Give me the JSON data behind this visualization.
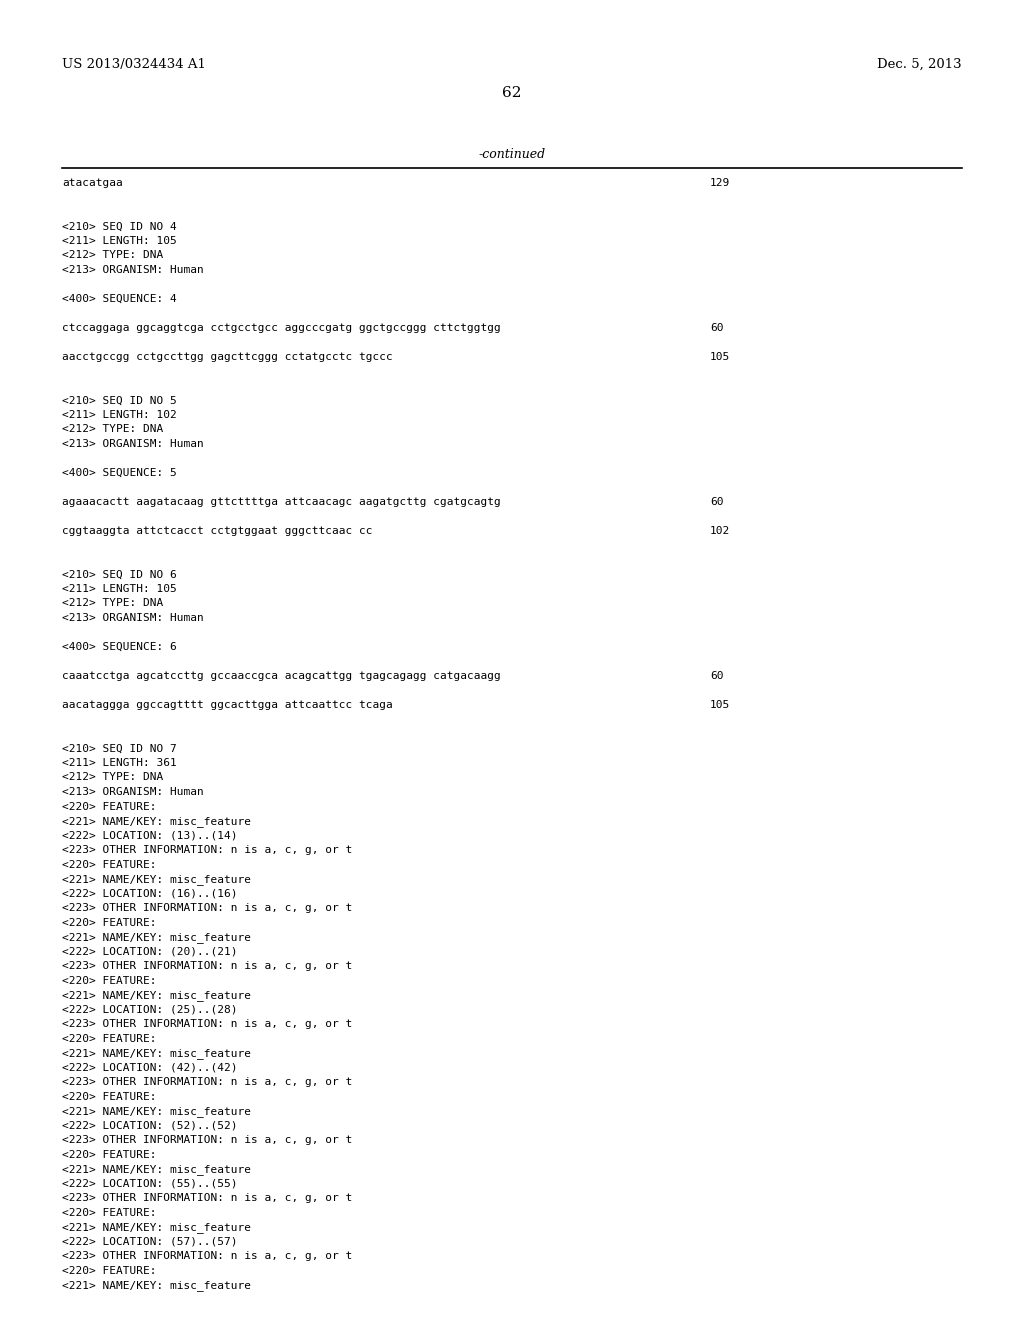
{
  "background_color": "#ffffff",
  "header_left": "US 2013/0324434 A1",
  "header_right": "Dec. 5, 2013",
  "page_number": "62",
  "continued_label": "-continued",
  "content": [
    {
      "type": "seq",
      "text": "atacatgaa",
      "number": "129"
    },
    {
      "type": "blank"
    },
    {
      "type": "blank"
    },
    {
      "type": "meta",
      "text": "<210> SEQ ID NO 4"
    },
    {
      "type": "meta",
      "text": "<211> LENGTH: 105"
    },
    {
      "type": "meta",
      "text": "<212> TYPE: DNA"
    },
    {
      "type": "meta",
      "text": "<213> ORGANISM: Human"
    },
    {
      "type": "blank"
    },
    {
      "type": "meta",
      "text": "<400> SEQUENCE: 4"
    },
    {
      "type": "blank"
    },
    {
      "type": "seq",
      "text": "ctccaggaga ggcaggtcga cctgcctgcc aggcccgatg ggctgccggg cttctggtgg",
      "number": "60"
    },
    {
      "type": "blank"
    },
    {
      "type": "seq",
      "text": "aacctgccgg cctgccttgg gagcttcggg cctatgcctc tgccc",
      "number": "105"
    },
    {
      "type": "blank"
    },
    {
      "type": "blank"
    },
    {
      "type": "meta",
      "text": "<210> SEQ ID NO 5"
    },
    {
      "type": "meta",
      "text": "<211> LENGTH: 102"
    },
    {
      "type": "meta",
      "text": "<212> TYPE: DNA"
    },
    {
      "type": "meta",
      "text": "<213> ORGANISM: Human"
    },
    {
      "type": "blank"
    },
    {
      "type": "meta",
      "text": "<400> SEQUENCE: 5"
    },
    {
      "type": "blank"
    },
    {
      "type": "seq",
      "text": "agaaacactt aagatacaag gttcttttga attcaacagc aagatgcttg cgatgcagtg",
      "number": "60"
    },
    {
      "type": "blank"
    },
    {
      "type": "seq",
      "text": "cggtaaggta attctcacct cctgtggaat gggcttcaac cc",
      "number": "102"
    },
    {
      "type": "blank"
    },
    {
      "type": "blank"
    },
    {
      "type": "meta",
      "text": "<210> SEQ ID NO 6"
    },
    {
      "type": "meta",
      "text": "<211> LENGTH: 105"
    },
    {
      "type": "meta",
      "text": "<212> TYPE: DNA"
    },
    {
      "type": "meta",
      "text": "<213> ORGANISM: Human"
    },
    {
      "type": "blank"
    },
    {
      "type": "meta",
      "text": "<400> SEQUENCE: 6"
    },
    {
      "type": "blank"
    },
    {
      "type": "seq",
      "text": "caaatcctga agcatccttg gccaaccgca acagcattgg tgagcagagg catgacaagg",
      "number": "60"
    },
    {
      "type": "blank"
    },
    {
      "type": "seq",
      "text": "aacataggga ggccagtttt ggcacttgga attcaattcc tcaga",
      "number": "105"
    },
    {
      "type": "blank"
    },
    {
      "type": "blank"
    },
    {
      "type": "meta",
      "text": "<210> SEQ ID NO 7"
    },
    {
      "type": "meta",
      "text": "<211> LENGTH: 361"
    },
    {
      "type": "meta",
      "text": "<212> TYPE: DNA"
    },
    {
      "type": "meta",
      "text": "<213> ORGANISM: Human"
    },
    {
      "type": "meta",
      "text": "<220> FEATURE:"
    },
    {
      "type": "meta",
      "text": "<221> NAME/KEY: misc_feature"
    },
    {
      "type": "meta",
      "text": "<222> LOCATION: (13)..(14)"
    },
    {
      "type": "meta",
      "text": "<223> OTHER INFORMATION: n is a, c, g, or t"
    },
    {
      "type": "meta",
      "text": "<220> FEATURE:"
    },
    {
      "type": "meta",
      "text": "<221> NAME/KEY: misc_feature"
    },
    {
      "type": "meta",
      "text": "<222> LOCATION: (16)..(16)"
    },
    {
      "type": "meta",
      "text": "<223> OTHER INFORMATION: n is a, c, g, or t"
    },
    {
      "type": "meta",
      "text": "<220> FEATURE:"
    },
    {
      "type": "meta",
      "text": "<221> NAME/KEY: misc_feature"
    },
    {
      "type": "meta",
      "text": "<222> LOCATION: (20)..(21)"
    },
    {
      "type": "meta",
      "text": "<223> OTHER INFORMATION: n is a, c, g, or t"
    },
    {
      "type": "meta",
      "text": "<220> FEATURE:"
    },
    {
      "type": "meta",
      "text": "<221> NAME/KEY: misc_feature"
    },
    {
      "type": "meta",
      "text": "<222> LOCATION: (25)..(28)"
    },
    {
      "type": "meta",
      "text": "<223> OTHER INFORMATION: n is a, c, g, or t"
    },
    {
      "type": "meta",
      "text": "<220> FEATURE:"
    },
    {
      "type": "meta",
      "text": "<221> NAME/KEY: misc_feature"
    },
    {
      "type": "meta",
      "text": "<222> LOCATION: (42)..(42)"
    },
    {
      "type": "meta",
      "text": "<223> OTHER INFORMATION: n is a, c, g, or t"
    },
    {
      "type": "meta",
      "text": "<220> FEATURE:"
    },
    {
      "type": "meta",
      "text": "<221> NAME/KEY: misc_feature"
    },
    {
      "type": "meta",
      "text": "<222> LOCATION: (52)..(52)"
    },
    {
      "type": "meta",
      "text": "<223> OTHER INFORMATION: n is a, c, g, or t"
    },
    {
      "type": "meta",
      "text": "<220> FEATURE:"
    },
    {
      "type": "meta",
      "text": "<221> NAME/KEY: misc_feature"
    },
    {
      "type": "meta",
      "text": "<222> LOCATION: (55)..(55)"
    },
    {
      "type": "meta",
      "text": "<223> OTHER INFORMATION: n is a, c, g, or t"
    },
    {
      "type": "meta",
      "text": "<220> FEATURE:"
    },
    {
      "type": "meta",
      "text": "<221> NAME/KEY: misc_feature"
    },
    {
      "type": "meta",
      "text": "<222> LOCATION: (57)..(57)"
    },
    {
      "type": "meta",
      "text": "<223> OTHER INFORMATION: n is a, c, g, or t"
    },
    {
      "type": "meta",
      "text": "<220> FEATURE:"
    },
    {
      "type": "meta",
      "text": "<221> NAME/KEY: misc_feature"
    }
  ]
}
